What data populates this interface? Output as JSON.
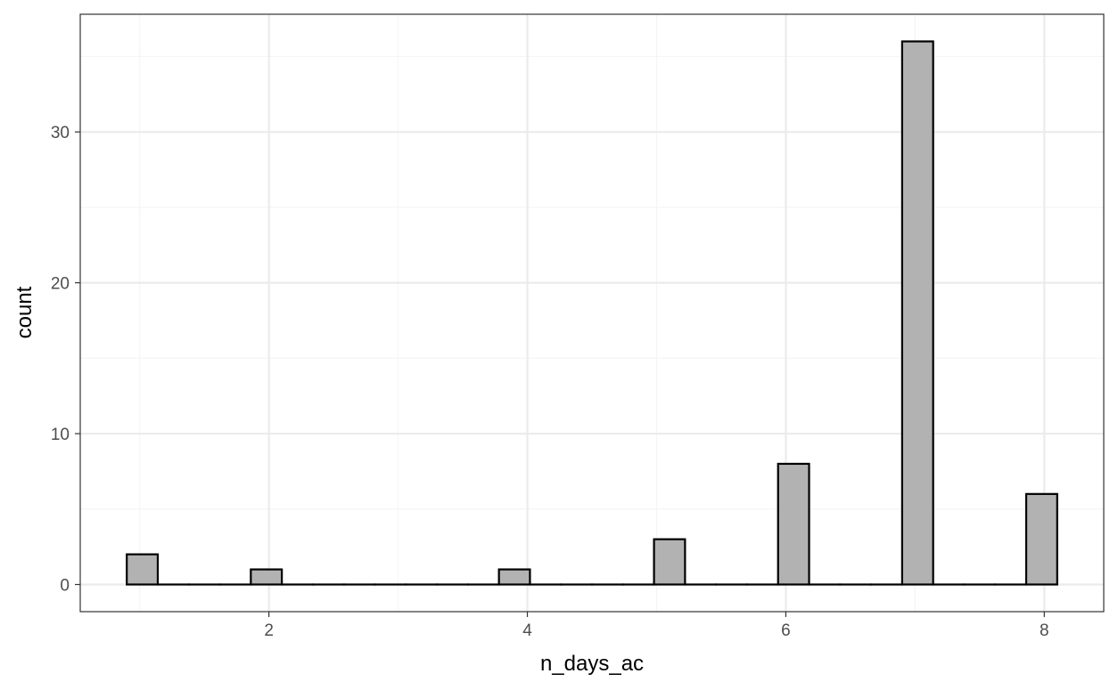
{
  "chart_data": {
    "type": "bar",
    "title": "",
    "xlabel": "n_days_ac",
    "ylabel": "count",
    "bins": 30,
    "x_bin_range": [
      0.9,
      8.1
    ],
    "xlim": [
      0.54,
      8.46
    ],
    "ylim": [
      -1.8,
      37.8
    ],
    "x_ticks": [
      2,
      4,
      6,
      8
    ],
    "y_ticks": [
      0,
      10,
      20,
      30
    ],
    "x": [
      1,
      2,
      4,
      5,
      6,
      7,
      8
    ],
    "values": [
      2,
      1,
      1,
      3,
      8,
      36,
      6
    ],
    "grid": true,
    "colors": {
      "bar_fill": "#b2b2b2",
      "bar_stroke": "#000000",
      "grid_major": "#ebebeb",
      "grid_minor": "#f5f5f5",
      "panel_border": "#333333",
      "tick_text": "#4d4d4d"
    }
  }
}
